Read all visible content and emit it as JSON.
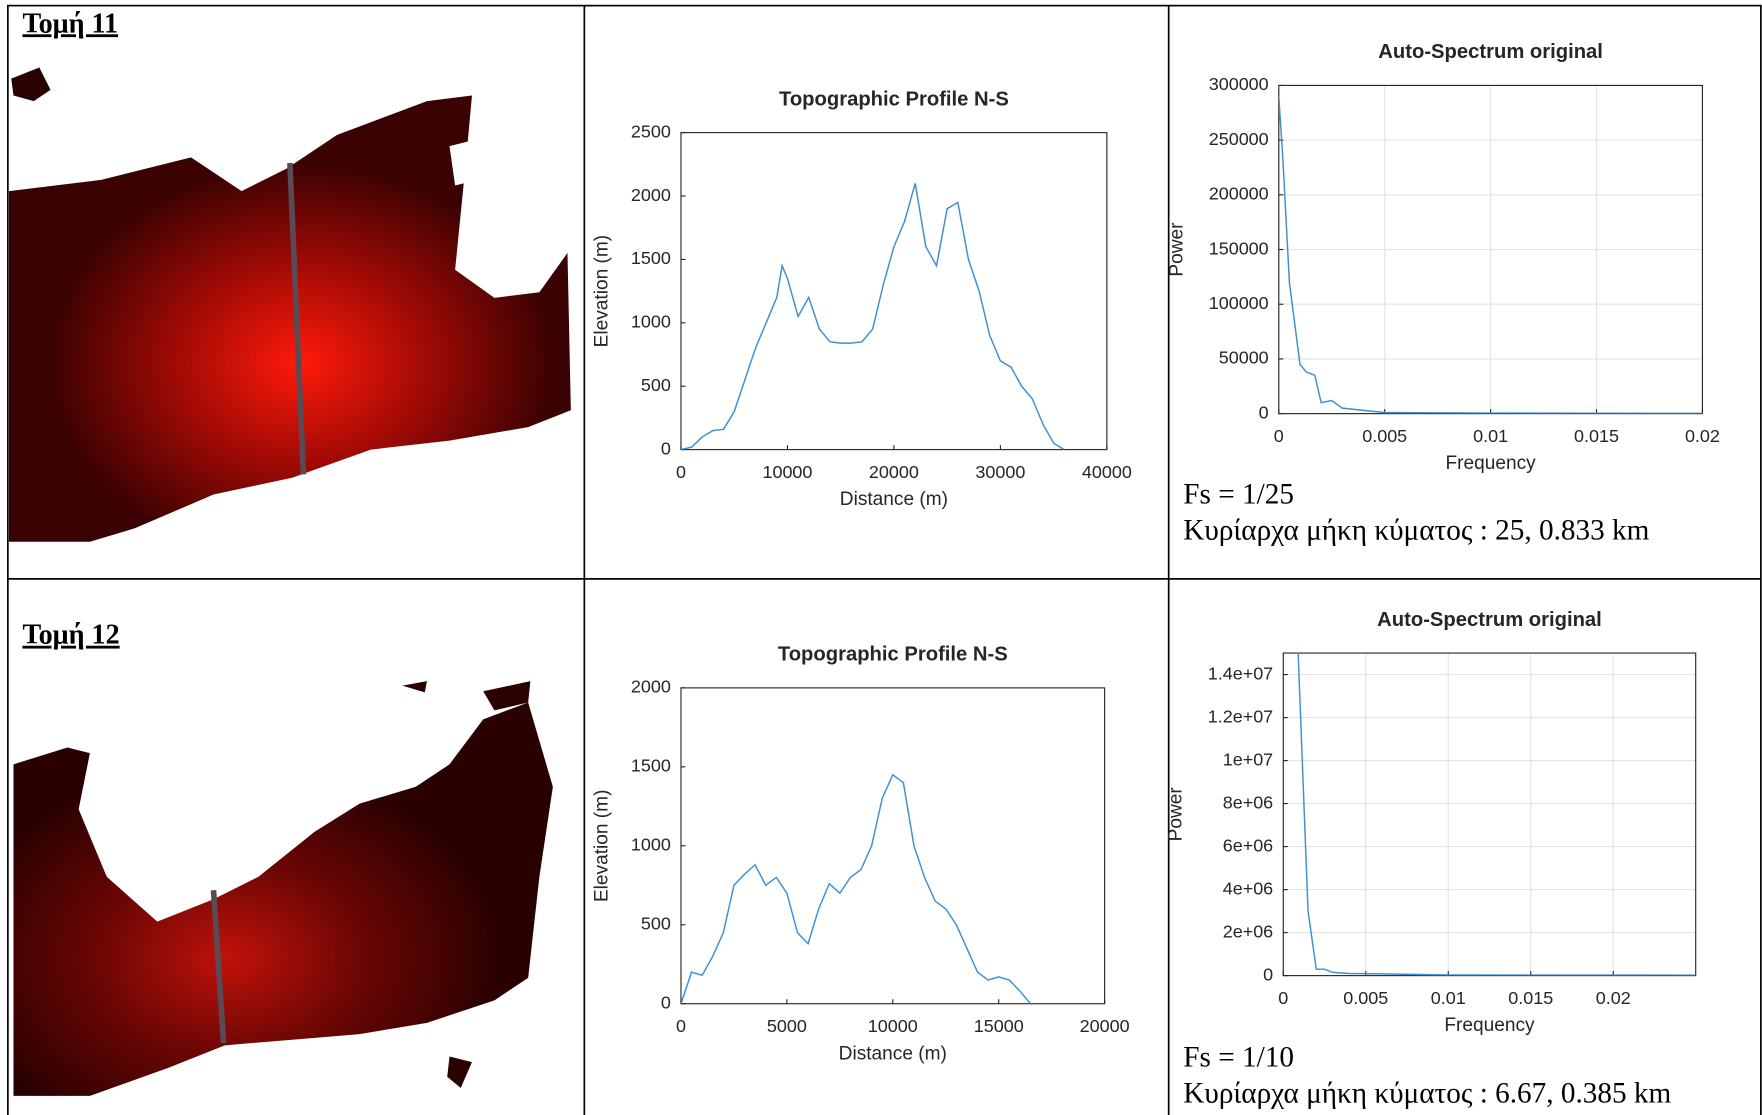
{
  "table": {
    "rows": [
      {
        "label": "Τομή 11",
        "profile": {
          "type": "line",
          "title": "Topographic Profile N-S",
          "x_label": "Distance (m)",
          "y_label": "Elevation (m)",
          "color": "#3f8fd0",
          "grid": false,
          "x": [
            0,
            1000,
            2000,
            3000,
            4000,
            5000,
            6000,
            7000,
            8000,
            9000,
            9500,
            10000,
            11000,
            12000,
            13000,
            14000,
            15000,
            16000,
            17000,
            18000,
            19000,
            20000,
            21000,
            22000,
            23000,
            24000,
            25000,
            26000,
            27000,
            28000,
            29000,
            30000,
            31000,
            32000,
            33000,
            34000,
            35000,
            36000
          ],
          "values": [
            0,
            20,
            100,
            150,
            160,
            300,
            550,
            800,
            1000,
            1200,
            1450,
            1350,
            1050,
            1200,
            950,
            850,
            840,
            840,
            850,
            950,
            1300,
            1600,
            1800,
            2100,
            1600,
            1450,
            1900,
            1950,
            1500,
            1250,
            900,
            700,
            650,
            500,
            400,
            200,
            50,
            0
          ],
          "xlim": [
            0,
            40000
          ],
          "ylim": [
            0,
            2500
          ],
          "xticks": [
            0,
            10000,
            20000,
            30000,
            40000
          ],
          "yticks": [
            0,
            500,
            1000,
            1500,
            2000,
            2500
          ]
        },
        "spectrum": {
          "type": "line",
          "title": "Auto-Spectrum original",
          "x_label": "Frequency",
          "y_label": "Power",
          "color": "#3f8fd0",
          "grid": true,
          "x": [
            0,
            0.0002,
            0.0005,
            0.001,
            0.0013,
            0.0017,
            0.002,
            0.0025,
            0.003,
            0.004,
            0.005,
            0.01,
            0.02
          ],
          "values": [
            290000,
            230000,
            120000,
            45000,
            38000,
            35000,
            10000,
            12000,
            5000,
            3000,
            1000,
            500,
            200
          ],
          "xlim": [
            0,
            0.02
          ],
          "ylim": [
            0,
            300000
          ],
          "xticks": [
            0,
            0.005,
            0.01,
            0.015,
            0.02
          ],
          "yticks": [
            0,
            50000,
            100000,
            150000,
            200000,
            250000,
            300000
          ]
        },
        "notes": [
          "Fs = 1/25",
          "Κυρίαρχα μήκη κύματος : 25, 0.833 km"
        ]
      },
      {
        "label": "Τομή 12",
        "profile": {
          "type": "line",
          "title": "Topographic Profile N-S",
          "x_label": "Distance (m)",
          "y_label": "Elevation (m)",
          "color": "#3f8fd0",
          "grid": false,
          "x": [
            0,
            500,
            1000,
            1500,
            2000,
            2500,
            3000,
            3500,
            4000,
            4500,
            5000,
            5500,
            6000,
            6500,
            7000,
            7500,
            8000,
            8500,
            9000,
            9500,
            10000,
            10500,
            11000,
            11500,
            12000,
            12500,
            13000,
            13500,
            14000,
            14500,
            15000,
            15500,
            16000,
            16500
          ],
          "values": [
            0,
            200,
            180,
            300,
            450,
            750,
            820,
            880,
            750,
            800,
            700,
            450,
            380,
            600,
            760,
            700,
            800,
            850,
            1000,
            1300,
            1450,
            1400,
            1000,
            800,
            650,
            600,
            500,
            350,
            200,
            150,
            170,
            150,
            80,
            0
          ],
          "xlim": [
            0,
            20000
          ],
          "ylim": [
            0,
            2000
          ],
          "xticks": [
            0,
            5000,
            10000,
            15000,
            20000
          ],
          "yticks": [
            0,
            500,
            1000,
            1500,
            2000
          ]
        },
        "spectrum": {
          "type": "line",
          "title": "Auto-Spectrum original",
          "x_label": "Frequency",
          "y_label": "Power",
          "color": "#3f8fd0",
          "grid": true,
          "x": [
            0.0008,
            0.0009,
            0.0012,
            0.0015,
            0.002,
            0.0025,
            0.003,
            0.004,
            0.006,
            0.01,
            0.025
          ],
          "values": [
            18000000,
            15000000,
            9000000,
            3000000,
            300000,
            300000,
            150000,
            100000,
            80000,
            30000,
            20000
          ],
          "xlim": [
            0,
            0.025
          ],
          "ylim": [
            0,
            15000000
          ],
          "xticks": [
            0,
            0.005,
            0.01,
            0.015,
            0.02
          ],
          "yticks": [
            0,
            {
              "value": 2000000,
              "label": "2e+06"
            },
            {
              "value": 4000000,
              "label": "4e+06"
            },
            {
              "value": 6000000,
              "label": "6e+06"
            },
            {
              "value": 8000000,
              "label": "8e+06"
            },
            {
              "value": 10000000,
              "label": "1e+07"
            },
            {
              "value": 12000000,
              "label": "1.2e+07"
            },
            {
              "value": 14000000,
              "label": "1.4e+07"
            }
          ]
        },
        "notes": [
          "Fs = 1/10",
          "Κυρίαρχα μήκη κύματος : 6.67, 0.385 km"
        ]
      }
    ]
  }
}
